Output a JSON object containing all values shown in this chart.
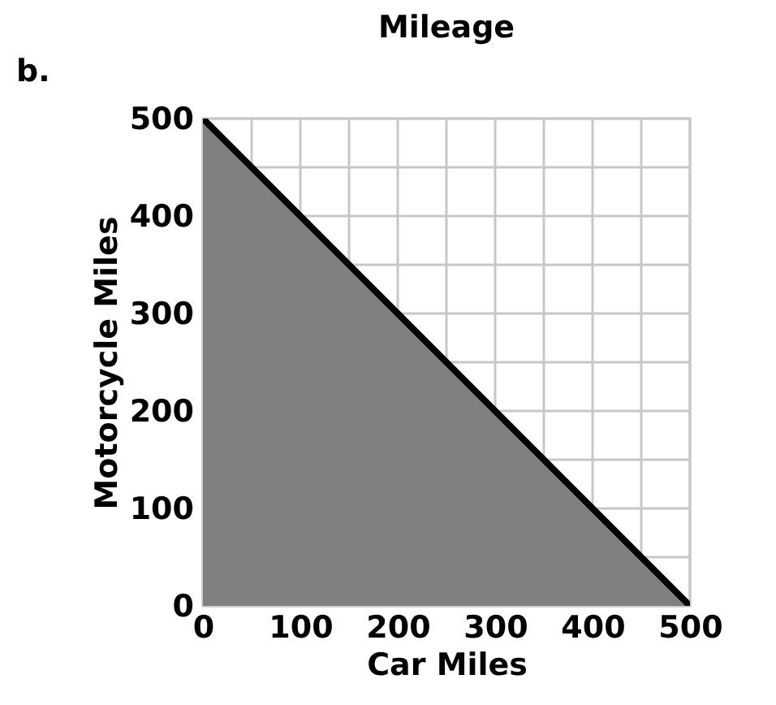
{
  "chart_data": {
    "type": "area",
    "title": "Mileage",
    "xlabel": "Car Miles",
    "ylabel": "Motorcycle Miles",
    "annotations": [
      "b."
    ],
    "series": [
      {
        "color": "#808080",
        "x": [
          0,
          500
        ],
        "values": [
          500,
          0
        ]
      }
    ],
    "xlim": [
      0,
      500
    ],
    "ylim": [
      0,
      500
    ],
    "xticks": [
      0,
      {
        "value": 50,
        "label": null
      },
      100,
      {
        "value": 150,
        "label": null
      },
      200,
      {
        "value": 250,
        "label": null
      },
      300,
      {
        "value": 350,
        "label": null
      },
      400,
      {
        "value": 450,
        "label": null
      },
      500
    ],
    "yticks": [
      0,
      {
        "value": 50,
        "label": null
      },
      100,
      {
        "value": 150,
        "label": null
      },
      200,
      {
        "value": 250,
        "label": null
      },
      300,
      {
        "value": 350,
        "label": null
      },
      400,
      {
        "value": 450,
        "label": null
      },
      500
    ],
    "grid": true,
    "line_style": "solid"
  }
}
